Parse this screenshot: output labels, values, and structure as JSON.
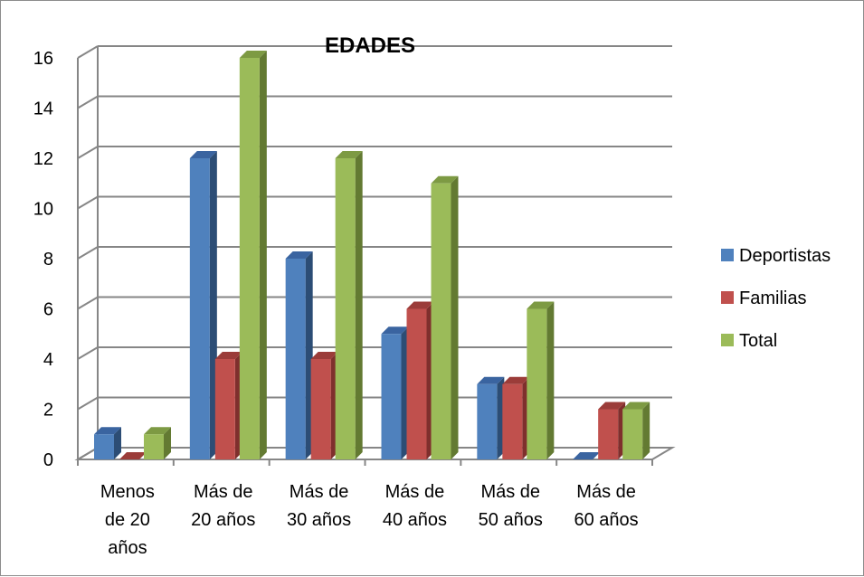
{
  "chart_data": {
    "type": "bar",
    "title": "EDADES",
    "categories": [
      [
        "Menos",
        "de 20",
        "años"
      ],
      [
        "Más de",
        "20 años"
      ],
      [
        "Más de",
        "30 años"
      ],
      [
        "Más de",
        "40 años"
      ],
      [
        "Más de",
        "50 años"
      ],
      [
        "Más de",
        "60 años"
      ]
    ],
    "series": [
      {
        "name": "Deportistas",
        "values": [
          1,
          12,
          8,
          5,
          3,
          0
        ],
        "color": "#4f81bd",
        "side": "#2c4d75",
        "top": "#3a64a0"
      },
      {
        "name": "Familias",
        "values": [
          0,
          4,
          4,
          6,
          3,
          2
        ],
        "color": "#c0504d",
        "side": "#7f2f2d",
        "top": "#9b3c39"
      },
      {
        "name": "Total",
        "values": [
          1,
          16,
          12,
          11,
          6,
          2
        ],
        "color": "#9bbb59",
        "side": "#637a32",
        "top": "#7d9a43"
      }
    ],
    "ylim": [
      0,
      16
    ],
    "yticks": [
      "0",
      "2",
      "4",
      "6",
      "8",
      "10",
      "12",
      "14",
      "16"
    ],
    "grid": true,
    "legend_position": "right"
  }
}
